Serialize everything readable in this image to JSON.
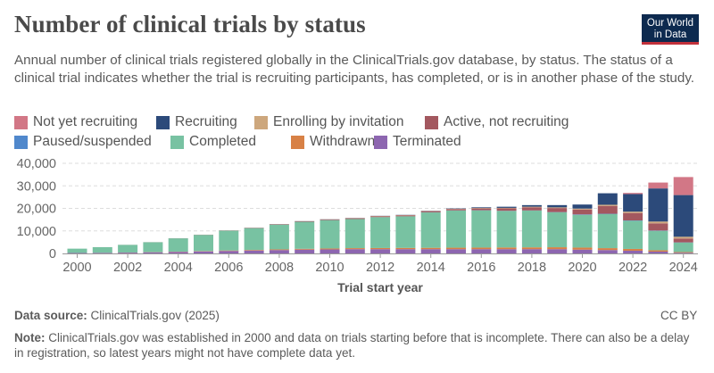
{
  "header": {
    "title": "Number of clinical trials by status",
    "logo_line1": "Our World",
    "logo_line2": "in Data",
    "subtitle": "Annual number of clinical trials registered globally in the ClinicalTrials.gov database, by status. The status of a clinical trial indicates whether the trial is recruiting participants, has completed, or is in another phase of the study."
  },
  "footer": {
    "source_label": "Data source:",
    "source_text": "ClinicalTrials.gov (2025)",
    "license": "CC BY",
    "note_label": "Note:",
    "note_text": "ClinicalTrials.gov was established in 2000 and data on trials starting before that is incomplete. There can also be a delay in registration, so latest years might not have complete data yet."
  },
  "colors": {
    "Not yet recruiting": "#d27786",
    "Recruiting": "#2c4a7a",
    "Enrolling by invitation": "#cda77d",
    "Active, not recruiting": "#a3585f",
    "Paused/suspended": "#5088cc",
    "Completed": "#78c2a2",
    "Withdrawn": "#d88146",
    "Terminated": "#8d66b0"
  },
  "chart_data": {
    "type": "bar",
    "stacked": true,
    "title": "Number of clinical trials by status",
    "xlabel": "Trial start year",
    "ylabel": "",
    "ylim": [
      0,
      40000
    ],
    "yticks": [
      0,
      10000,
      20000,
      30000,
      40000
    ],
    "ytick_labels": [
      "0",
      "10,000",
      "20,000",
      "30,000",
      "40,000"
    ],
    "xtick_labels": [
      "2000",
      "2002",
      "2004",
      "2006",
      "2008",
      "2010",
      "2012",
      "2014",
      "2016",
      "2018",
      "2020",
      "2022",
      "2024"
    ],
    "grid": true,
    "legend_position": "top",
    "categories": [
      "2000",
      "2001",
      "2002",
      "2003",
      "2004",
      "2005",
      "2006",
      "2007",
      "2008",
      "2009",
      "2010",
      "2011",
      "2012",
      "2013",
      "2014",
      "2015",
      "2016",
      "2017",
      "2018",
      "2019",
      "2020",
      "2021",
      "2022",
      "2023",
      "2024"
    ],
    "series": [
      {
        "name": "Terminated",
        "values": [
          200,
          250,
          350,
          500,
          700,
          900,
          1100,
          1300,
          1500,
          1700,
          1800,
          1900,
          1900,
          1900,
          1900,
          1900,
          1900,
          1900,
          1900,
          1900,
          1700,
          1500,
          1200,
          800,
          300
        ]
      },
      {
        "name": "Withdrawn",
        "values": [
          20,
          30,
          50,
          70,
          100,
          150,
          200,
          250,
          300,
          350,
          400,
          450,
          500,
          550,
          600,
          650,
          700,
          750,
          800,
          850,
          900,
          850,
          800,
          600,
          300
        ]
      },
      {
        "name": "Completed",
        "values": [
          1900,
          2500,
          3400,
          4400,
          5900,
          7200,
          8800,
          9700,
          11000,
          12000,
          12600,
          12900,
          13700,
          14000,
          15700,
          16500,
          16500,
          16200,
          16300,
          15500,
          14500,
          15100,
          12500,
          8600,
          4200
        ]
      },
      {
        "name": "Paused/suspended",
        "values": [
          0,
          0,
          0,
          0,
          0,
          0,
          0,
          0,
          10,
          10,
          20,
          20,
          30,
          40,
          50,
          60,
          70,
          80,
          90,
          100,
          200,
          150,
          150,
          150,
          100
        ]
      },
      {
        "name": "Active, not recruiting",
        "values": [
          0,
          10,
          20,
          30,
          50,
          80,
          100,
          150,
          200,
          250,
          300,
          350,
          400,
          450,
          500,
          600,
          800,
          1100,
          1400,
          1800,
          2200,
          3500,
          3300,
          3200,
          1700
        ]
      },
      {
        "name": "Enrolling by invitation",
        "values": [
          0,
          0,
          0,
          0,
          0,
          0,
          0,
          10,
          20,
          30,
          50,
          70,
          100,
          100,
          100,
          150,
          200,
          200,
          250,
          300,
          400,
          500,
          600,
          800,
          800
        ]
      },
      {
        "name": "Recruiting",
        "values": [
          0,
          0,
          0,
          0,
          0,
          0,
          0,
          10,
          20,
          30,
          40,
          50,
          60,
          80,
          100,
          150,
          300,
          500,
          700,
          1000,
          1800,
          5100,
          7800,
          14700,
          18500
        ]
      },
      {
        "name": "Not yet recruiting",
        "values": [
          0,
          0,
          0,
          0,
          0,
          0,
          0,
          0,
          0,
          0,
          0,
          0,
          0,
          0,
          0,
          0,
          0,
          0,
          0,
          0,
          0,
          0,
          500,
          2600,
          8000
        ]
      }
    ]
  }
}
